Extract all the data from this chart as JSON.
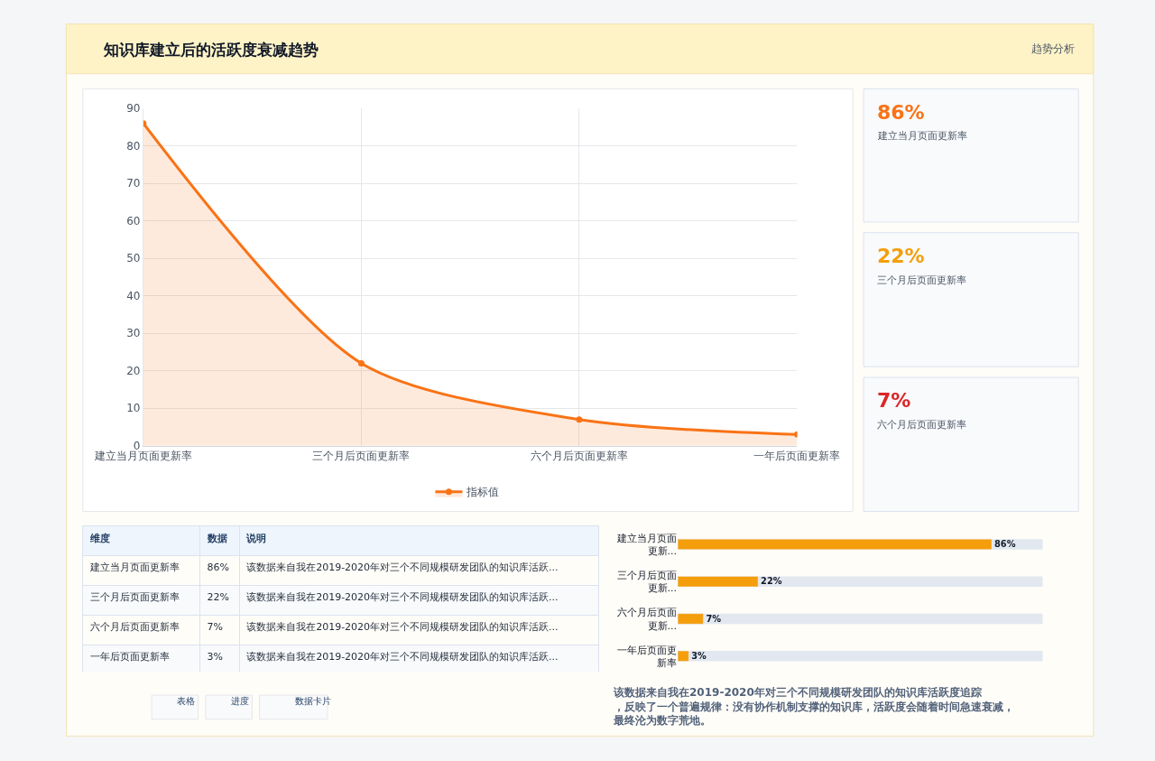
{
  "chart_data": [
    {
      "type": "other",
      "title": "知识库建立后的活跃度衰减趋势",
      "subtitle": "趋势分析"
    },
    {
      "type": "area",
      "categories": [
        "建立当月页面更新率",
        "三个月后页面更新率",
        "六个月后页面更新率",
        "一年后页面更新率"
      ],
      "series": [
        {
          "name": "指标值",
          "color": "#f97316",
          "values": [
            86,
            22,
            7,
            3
          ]
        }
      ],
      "ylim": [
        0,
        90
      ],
      "yticks": [
        0,
        10,
        20,
        30,
        40,
        50,
        60,
        70,
        80,
        90
      ],
      "grid": true,
      "legend": "bottom",
      "marker": "circle",
      "line_style": "solid"
    },
    {
      "type": "other",
      "annotations": [
        "86%",
        "建立当月页面更新率",
        "22%",
        "三个月后页面更新率",
        "7%",
        "六个月后页面更新率"
      ],
      "colors": [
        "#f97316",
        "#f59e0b",
        "#dc2626"
      ]
    },
    {
      "type": "other",
      "categories": [
        "维度",
        "数据",
        "说明"
      ],
      "cell_labels": [
        [
          "建立当月页面更新率",
          "86%",
          "该数据来自我在2019-2020年对三个不同规模研发团队的知识库活跃..."
        ],
        [
          "三个月后页面更新率",
          "22%",
          "该数据来自我在2019-2020年对三个不同规模研发团队的知识库活跃..."
        ],
        [
          "六个月后页面更新率",
          "7%",
          "该数据来自我在2019-2020年对三个不同规模研发团队的知识库活跃..."
        ],
        [
          "一年后页面更新率",
          "3%",
          "该数据来自我在2019-2020年对三个不同规模研发团队的知识库活跃..."
        ]
      ],
      "annotations": [
        "表格",
        "进度",
        "数据卡片"
      ]
    },
    {
      "type": "bar",
      "orientation": "horizontal",
      "categories": [
        "建立当月页面更新...",
        "三个月后页面更新...",
        "六个月后页面更新...",
        "一年后页面更新率"
      ],
      "values": [
        86,
        22,
        7,
        3
      ],
      "value_labels": [
        "86%",
        "22%",
        "7%",
        "3%"
      ],
      "color": "#f59e0b",
      "xlim": [
        0,
        100
      ],
      "tick_labels": false,
      "annotations": [
        "该数据来自我在2019-2020年对三个不同规模研发团队的知识库活跃度追踪，反映了一个普遍规律：没有协作机制支撑的知识库，活跃度会随着时间急速衰减，最终沦为数字荒地。"
      ]
    }
  ]
}
